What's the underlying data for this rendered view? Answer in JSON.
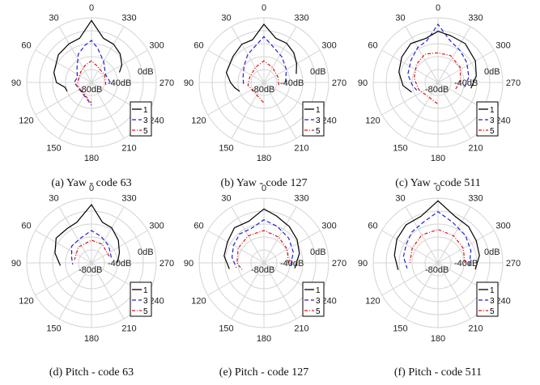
{
  "figure": {
    "angle_labels": [
      "0",
      "330",
      "300",
      "270",
      "240",
      "210",
      "180",
      "150",
      "120",
      "90",
      "60",
      "30"
    ],
    "radial_labels": [
      "0dB",
      "-40dB",
      "-80dB"
    ],
    "legend_labels": [
      "1",
      "3",
      "5"
    ],
    "series_colors": {
      "1": "#000000",
      "3": "#1f1fd6",
      "5": "#e01010"
    }
  },
  "chart_data": [
    {
      "type": "polar-line",
      "caption": "(a)  Yaw - code 63",
      "radial_axis": {
        "unit": "dB",
        "range": [
          -120,
          0
        ]
      },
      "angle_labels": [
        "0",
        "330",
        "300",
        "270",
        "240",
        "210",
        "180",
        "150",
        "120",
        "90",
        "60",
        "30"
      ],
      "series": [
        {
          "name": "1",
          "points": [
            [
              0,
              -5
            ],
            [
              15,
              -35
            ],
            [
              30,
              -37
            ],
            [
              50,
              -40
            ],
            [
              75,
              -48
            ],
            [
              90,
              -55
            ],
            [
              100,
              -70
            ],
            [
              110,
              -72
            ],
            [
              -15,
              -35
            ],
            [
              -30,
              -38
            ],
            [
              -45,
              -45
            ],
            [
              -60,
              -55
            ],
            [
              -70,
              -65
            ]
          ]
        },
        {
          "name": "3",
          "points": [
            [
              0,
              -42
            ],
            [
              10,
              -50
            ],
            [
              25,
              -62
            ],
            [
              45,
              -82
            ],
            [
              70,
              -92
            ],
            [
              90,
              -88
            ],
            [
              180,
              -78
            ],
            [
              -10,
              -55
            ],
            [
              -30,
              -75
            ],
            [
              -60,
              -90
            ],
            [
              -90,
              -85
            ]
          ]
        },
        {
          "name": "5",
          "points": [
            [
              0,
              -80
            ],
            [
              20,
              -86
            ],
            [
              45,
              -92
            ],
            [
              80,
              -95
            ],
            [
              100,
              -92
            ],
            [
              180,
              -82
            ],
            [
              -20,
              -88
            ],
            [
              -60,
              -92
            ],
            [
              -100,
              -93
            ]
          ]
        }
      ]
    },
    {
      "type": "polar-line",
      "caption": "(b)  Yaw - code 127",
      "radial_axis": {
        "unit": "dB",
        "range": [
          -120,
          0
        ]
      },
      "angle_labels": [
        "0",
        "330",
        "300",
        "270",
        "240",
        "210",
        "180",
        "150",
        "120",
        "90",
        "60",
        "30"
      ],
      "series": [
        {
          "name": "1",
          "points": [
            [
              0,
              -12
            ],
            [
              15,
              -38
            ],
            [
              30,
              -38
            ],
            [
              50,
              -45
            ],
            [
              75,
              -48
            ],
            [
              90,
              -58
            ],
            [
              100,
              -65
            ],
            [
              110,
              -72
            ],
            [
              -15,
              -35
            ],
            [
              -30,
              -36
            ],
            [
              -45,
              -42
            ],
            [
              -60,
              -50
            ],
            [
              -75,
              -58
            ]
          ]
        },
        {
          "name": "3",
          "points": [
            [
              0,
              -35
            ],
            [
              15,
              -52
            ],
            [
              30,
              -60
            ],
            [
              50,
              -72
            ],
            [
              75,
              -80
            ],
            [
              95,
              -82
            ],
            [
              -15,
              -52
            ],
            [
              -35,
              -62
            ],
            [
              -60,
              -72
            ],
            [
              -90,
              -80
            ]
          ]
        },
        {
          "name": "5",
          "points": [
            [
              0,
              -80
            ],
            [
              30,
              -88
            ],
            [
              70,
              -92
            ],
            [
              100,
              -90
            ],
            [
              180,
              -82
            ],
            [
              -30,
              -88
            ],
            [
              -70,
              -92
            ],
            [
              -100,
              -92
            ]
          ]
        }
      ]
    },
    {
      "type": "polar-line",
      "caption": "(c)  Yaw - code 511",
      "radial_axis": {
        "unit": "dB",
        "range": [
          -120,
          0
        ]
      },
      "angle_labels": [
        "0",
        "330",
        "300",
        "270",
        "240",
        "210",
        "180",
        "150",
        "120",
        "90",
        "60",
        "30"
      ],
      "series": [
        {
          "name": "1",
          "points": [
            [
              0,
              -25
            ],
            [
              15,
              -35
            ],
            [
              35,
              -32
            ],
            [
              55,
              -38
            ],
            [
              75,
              -45
            ],
            [
              95,
              -55
            ],
            [
              110,
              -68
            ],
            [
              -15,
              -30
            ],
            [
              -35,
              -32
            ],
            [
              -60,
              -40
            ],
            [
              -80,
              -48
            ],
            [
              -100,
              -58
            ]
          ]
        },
        {
          "name": "3",
          "points": [
            [
              0,
              -12
            ],
            [
              15,
              -40
            ],
            [
              30,
              -45
            ],
            [
              50,
              -55
            ],
            [
              75,
              -62
            ],
            [
              95,
              -72
            ],
            [
              110,
              -78
            ],
            [
              -15,
              -38
            ],
            [
              -35,
              -48
            ],
            [
              -55,
              -55
            ],
            [
              -80,
              -62
            ],
            [
              -100,
              -70
            ]
          ]
        },
        {
          "name": "5",
          "points": [
            [
              0,
              -65
            ],
            [
              25,
              -62
            ],
            [
              50,
              -68
            ],
            [
              80,
              -75
            ],
            [
              110,
              -82
            ],
            [
              180,
              -80
            ],
            [
              -25,
              -65
            ],
            [
              -55,
              -70
            ],
            [
              -85,
              -78
            ],
            [
              -110,
              -85
            ]
          ]
        }
      ]
    },
    {
      "type": "polar-line",
      "caption": "(d)  Pitch - code 63",
      "radial_axis": {
        "unit": "dB",
        "range": [
          -120,
          0
        ]
      },
      "angle_labels": [
        "0",
        "330",
        "300",
        "270",
        "240",
        "210",
        "180",
        "150",
        "120",
        "90",
        "60",
        "30"
      ],
      "series": [
        {
          "name": "1",
          "points": [
            [
              0,
              -12
            ],
            [
              20,
              -40
            ],
            [
              35,
              -42
            ],
            [
              55,
              -40
            ],
            [
              75,
              -50
            ],
            [
              95,
              -62
            ],
            [
              -15,
              -42
            ],
            [
              -30,
              -45
            ],
            [
              -50,
              -55
            ],
            [
              -70,
              -65
            ],
            [
              -90,
              -72
            ]
          ]
        },
        {
          "name": "3",
          "points": [
            [
              0,
              -60
            ],
            [
              25,
              -70
            ],
            [
              50,
              -72
            ],
            [
              75,
              -82
            ],
            [
              95,
              -85
            ],
            [
              -20,
              -68
            ],
            [
              -45,
              -75
            ],
            [
              -75,
              -82
            ]
          ]
        },
        {
          "name": "5",
          "points": [
            [
              0,
              -78
            ],
            [
              40,
              -82
            ],
            [
              80,
              -88
            ],
            [
              -30,
              -80
            ],
            [
              -70,
              -85
            ]
          ]
        }
      ]
    },
    {
      "type": "polar-line",
      "caption": "(e)  Pitch - code 127",
      "radial_axis": {
        "unit": "dB",
        "range": [
          -120,
          0
        ]
      },
      "angle_labels": [
        "0",
        "330",
        "300",
        "270",
        "240",
        "210",
        "180",
        "150",
        "120",
        "90",
        "60",
        "30"
      ],
      "series": [
        {
          "name": "1",
          "points": [
            [
              0,
              -20
            ],
            [
              20,
              -38
            ],
            [
              40,
              -35
            ],
            [
              60,
              -42
            ],
            [
              80,
              -45
            ],
            [
              100,
              -55
            ],
            [
              -15,
              -30
            ],
            [
              -35,
              -38
            ],
            [
              -55,
              -45
            ],
            [
              -75,
              -52
            ],
            [
              -100,
              -62
            ]
          ]
        },
        {
          "name": "3",
          "points": [
            [
              0,
              -40
            ],
            [
              20,
              -52
            ],
            [
              40,
              -50
            ],
            [
              60,
              -55
            ],
            [
              80,
              -60
            ],
            [
              100,
              -68
            ],
            [
              -20,
              -48
            ],
            [
              -45,
              -55
            ],
            [
              -70,
              -62
            ],
            [
              -95,
              -70
            ]
          ]
        },
        {
          "name": "5",
          "points": [
            [
              0,
              -60
            ],
            [
              30,
              -62
            ],
            [
              60,
              -65
            ],
            [
              90,
              -70
            ],
            [
              110,
              -78
            ],
            [
              -30,
              -65
            ],
            [
              -60,
              -70
            ],
            [
              -90,
              -75
            ]
          ]
        }
      ]
    },
    {
      "type": "polar-line",
      "caption": "(f)  Pitch - code 511",
      "radial_axis": {
        "unit": "dB",
        "range": [
          -120,
          0
        ]
      },
      "angle_labels": [
        "0",
        "330",
        "300",
        "270",
        "240",
        "210",
        "180",
        "150",
        "120",
        "90",
        "60",
        "30"
      ],
      "series": [
        {
          "name": "1",
          "points": [
            [
              0,
              -5
            ],
            [
              20,
              -28
            ],
            [
              40,
              -28
            ],
            [
              60,
              -32
            ],
            [
              80,
              -38
            ],
            [
              100,
              -45
            ],
            [
              -20,
              -28
            ],
            [
              -40,
              -32
            ],
            [
              -60,
              -38
            ],
            [
              -80,
              -42
            ],
            [
              -100,
              -50
            ]
          ]
        },
        {
          "name": "3",
          "points": [
            [
              0,
              -25
            ],
            [
              20,
              -40
            ],
            [
              40,
              -45
            ],
            [
              60,
              -52
            ],
            [
              80,
              -55
            ],
            [
              100,
              -62
            ],
            [
              -20,
              -40
            ],
            [
              -45,
              -48
            ],
            [
              -70,
              -55
            ],
            [
              -95,
              -62
            ]
          ]
        },
        {
          "name": "5",
          "points": [
            [
              0,
              -58
            ],
            [
              30,
              -60
            ],
            [
              60,
              -65
            ],
            [
              90,
              -68
            ],
            [
              -30,
              -62
            ],
            [
              -60,
              -66
            ],
            [
              -90,
              -70
            ]
          ]
        }
      ]
    }
  ]
}
